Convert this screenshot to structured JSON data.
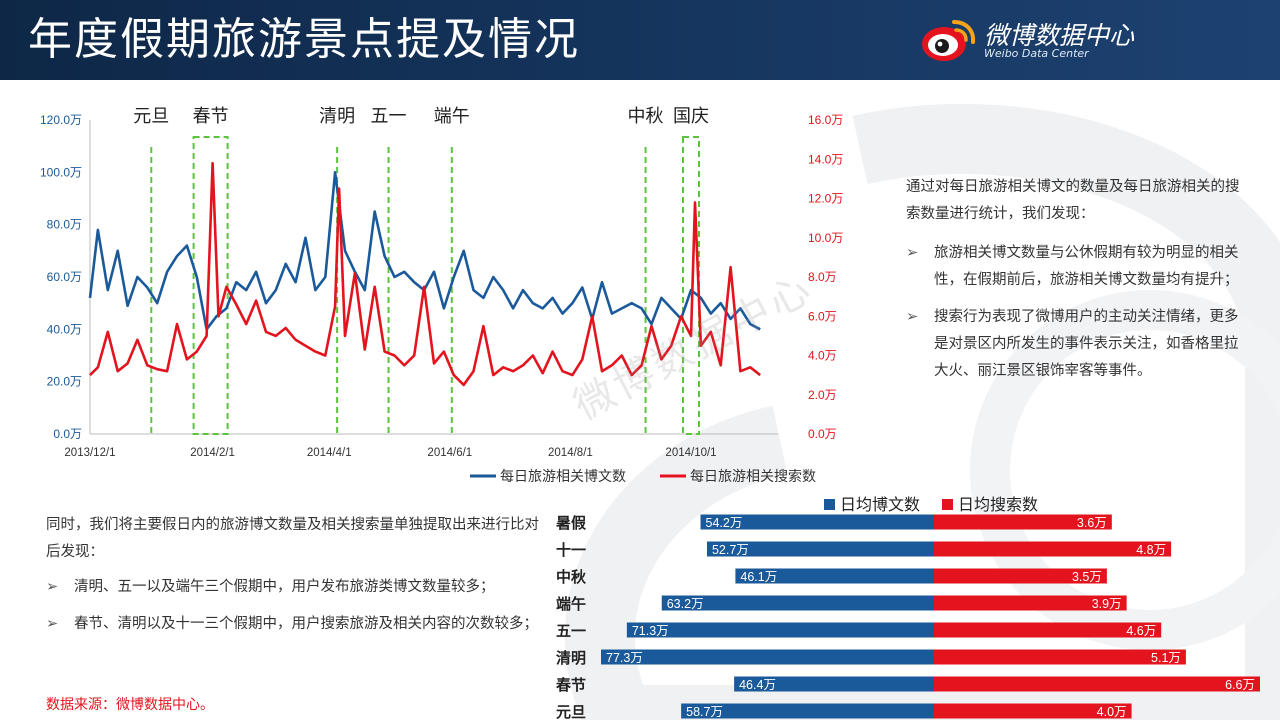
{
  "page": {
    "title": "年度假期旅游景点提及情况",
    "logo_text": "微博数据中心",
    "logo_sub": "Weibo Data Center",
    "watermark": "微博数据中心",
    "colors": {
      "blue": "#1b5a9a",
      "red": "#e3141e",
      "green": "#5cc43c",
      "header": "#0e2747"
    }
  },
  "panel": {
    "intro": "通过对每日旅游相关博文的数量及每日旅游相关的搜索数量进行统计，我们发现：",
    "bullets": [
      "旅游相关博文数量与公休假期有较为明显的相关性，在假期前后，旅游相关博文数量均有提升；",
      "搜索行为表现了微博用户的主动关注情绪，更多是对景区内所发生的事件表示关注，如香格里拉大火、丽江景区银饰宰客等事件。"
    ]
  },
  "lower": {
    "intro": "同时，我们将主要假日内的旅游博文数量及相关搜索量单独提取出来进行比对后发现：",
    "bullets": [
      "清明、五一以及端午三个假期中，用户发布旅游类博文数量较多；",
      "春节、清明以及十一三个假期中，用户搜索旅游及相关内容的次数较多；"
    ],
    "source": "数据来源：微博数据中心。"
  },
  "chart_data": [
    {
      "type": "line",
      "title": "",
      "x_ticks": [
        "2013/12/1",
        "2014/2/1",
        "2014/4/1",
        "2014/6/1",
        "2014/8/1",
        "2014/10/1"
      ],
      "left_axis": {
        "ticks": [
          "0.0万",
          "20.0万",
          "40.0万",
          "60.0万",
          "80.0万",
          "100.0万",
          "120.0万"
        ],
        "range": [
          0,
          120
        ],
        "unit": "万"
      },
      "right_axis": {
        "ticks": [
          "0.0万",
          "2.0万",
          "4.0万",
          "6.0万",
          "8.0万",
          "10.0万",
          "12.0万",
          "14.0万",
          "16.0万"
        ],
        "range": [
          0,
          16
        ],
        "unit": "万"
      },
      "holidays": [
        {
          "label": "元旦",
          "date": "2014/1/1",
          "boxed": false
        },
        {
          "label": "春节",
          "date": "2014/1/31",
          "boxed": true
        },
        {
          "label": "清明",
          "date": "2014/4/5",
          "boxed": false
        },
        {
          "label": "五一",
          "date": "2014/5/1",
          "boxed": false
        },
        {
          "label": "端午",
          "date": "2014/6/2",
          "boxed": false
        },
        {
          "label": "中秋",
          "date": "2014/9/8",
          "boxed": false
        },
        {
          "label": "国庆",
          "date": "2014/10/1",
          "boxed": true
        }
      ],
      "series": [
        {
          "name": "每日旅游相关博文数",
          "axis": "left",
          "x": [
            "2013/12/1",
            "2013/12/5",
            "2013/12/10",
            "2013/12/15",
            "2013/12/20",
            "2013/12/25",
            "2013/12/30",
            "2014/1/4",
            "2014/1/9",
            "2014/1/14",
            "2014/1/19",
            "2014/1/24",
            "2014/1/29",
            "2014/2/3",
            "2014/2/8",
            "2014/2/13",
            "2014/2/18",
            "2014/2/23",
            "2014/2/28",
            "2014/3/5",
            "2014/3/10",
            "2014/3/15",
            "2014/3/20",
            "2014/3/25",
            "2014/3/30",
            "2014/4/4",
            "2014/4/9",
            "2014/4/14",
            "2014/4/19",
            "2014/4/24",
            "2014/4/29",
            "2014/5/4",
            "2014/5/9",
            "2014/5/14",
            "2014/5/19",
            "2014/5/24",
            "2014/5/29",
            "2014/6/3",
            "2014/6/8",
            "2014/6/13",
            "2014/6/18",
            "2014/6/23",
            "2014/6/28",
            "2014/7/3",
            "2014/7/8",
            "2014/7/13",
            "2014/7/18",
            "2014/7/23",
            "2014/7/28",
            "2014/8/2",
            "2014/8/7",
            "2014/8/12",
            "2014/8/17",
            "2014/8/22",
            "2014/8/27",
            "2014/9/1",
            "2014/9/6",
            "2014/9/11",
            "2014/9/16",
            "2014/9/21",
            "2014/9/26",
            "2014/10/1",
            "2014/10/6",
            "2014/10/11",
            "2014/10/16",
            "2014/10/21",
            "2014/10/26",
            "2014/10/31",
            "2014/11/5"
          ],
          "values": [
            52,
            78,
            55,
            70,
            49,
            60,
            56,
            50,
            62,
            68,
            72,
            60,
            40,
            45,
            48,
            58,
            55,
            62,
            50,
            55,
            65,
            58,
            75,
            55,
            60,
            100,
            70,
            62,
            55,
            85,
            68,
            60,
            62,
            58,
            55,
            62,
            48,
            60,
            70,
            55,
            52,
            60,
            55,
            48,
            55,
            50,
            48,
            52,
            46,
            50,
            56,
            44,
            58,
            46,
            48,
            50,
            48,
            42,
            52,
            48,
            44,
            55,
            52,
            46,
            50,
            44,
            48,
            42,
            40
          ]
        },
        {
          "name": "每日旅游相关搜索数",
          "axis": "right",
          "x": [
            "2013/12/1",
            "2013/12/5",
            "2013/12/10",
            "2013/12/15",
            "2013/12/20",
            "2013/12/25",
            "2013/12/30",
            "2014/1/4",
            "2014/1/9",
            "2014/1/14",
            "2014/1/19",
            "2014/1/24",
            "2014/1/29",
            "2014/2/1",
            "2014/2/4",
            "2014/2/8",
            "2014/2/13",
            "2014/2/18",
            "2014/2/23",
            "2014/2/28",
            "2014/3/5",
            "2014/3/10",
            "2014/3/15",
            "2014/3/20",
            "2014/3/25",
            "2014/3/30",
            "2014/4/4",
            "2014/4/6",
            "2014/4/9",
            "2014/4/14",
            "2014/4/19",
            "2014/4/24",
            "2014/4/29",
            "2014/5/4",
            "2014/5/9",
            "2014/5/14",
            "2014/5/19",
            "2014/5/24",
            "2014/5/29",
            "2014/6/3",
            "2014/6/8",
            "2014/6/13",
            "2014/6/18",
            "2014/6/23",
            "2014/6/28",
            "2014/7/3",
            "2014/7/8",
            "2014/7/13",
            "2014/7/18",
            "2014/7/23",
            "2014/7/28",
            "2014/8/2",
            "2014/8/7",
            "2014/8/12",
            "2014/8/17",
            "2014/8/22",
            "2014/8/27",
            "2014/9/1",
            "2014/9/6",
            "2014/9/11",
            "2014/9/16",
            "2014/9/21",
            "2014/9/26",
            "2014/10/1",
            "2014/10/3",
            "2014/10/6",
            "2014/10/11",
            "2014/10/16",
            "2014/10/21",
            "2014/10/26",
            "2014/10/31",
            "2014/11/5"
          ],
          "values": [
            3.0,
            3.4,
            5.2,
            3.2,
            3.6,
            4.8,
            3.5,
            3.3,
            3.2,
            5.6,
            3.8,
            4.2,
            5.0,
            13.8,
            6.0,
            7.5,
            6.6,
            5.6,
            6.8,
            5.2,
            5.0,
            5.4,
            4.8,
            4.5,
            4.2,
            4.0,
            6.5,
            12.5,
            5.0,
            8.2,
            4.3,
            7.5,
            4.2,
            4.0,
            3.5,
            4.0,
            7.5,
            3.6,
            4.2,
            3.0,
            2.5,
            3.2,
            5.5,
            3.0,
            3.4,
            3.2,
            3.5,
            4.0,
            3.1,
            4.2,
            3.2,
            3.0,
            3.8,
            6.0,
            3.2,
            3.5,
            4.0,
            3.0,
            3.5,
            5.5,
            3.8,
            4.5,
            6.0,
            5.0,
            11.8,
            4.5,
            5.2,
            3.5,
            8.5,
            3.2,
            3.4,
            3.0
          ]
        }
      ],
      "legend": "bottom-right"
    },
    {
      "type": "bar",
      "orientation": "horizontal-diverging",
      "categories": [
        "暑假",
        "十一",
        "中秋",
        "端午",
        "五一",
        "清明",
        "春节",
        "元旦"
      ],
      "series": [
        {
          "name": "日均博文数",
          "values": [
            54.2,
            52.7,
            46.1,
            63.2,
            71.3,
            77.3,
            46.4,
            58.7
          ],
          "labels": [
            "54.2万",
            "52.7万",
            "46.1万",
            "63.2万",
            "71.3万",
            "77.3万",
            "46.4万",
            "58.7万"
          ]
        },
        {
          "name": "日均搜索数",
          "values": [
            3.6,
            4.8,
            3.5,
            3.9,
            4.6,
            5.1,
            6.6,
            4.0
          ],
          "labels": [
            "3.6万",
            "4.8万",
            "3.5万",
            "3.9万",
            "4.6万",
            "5.1万",
            "6.6万",
            "4.0万"
          ]
        }
      ],
      "legend": "top"
    }
  ]
}
